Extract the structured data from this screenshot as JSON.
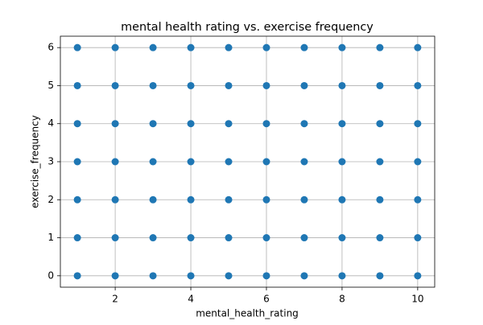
{
  "chart_data": {
    "type": "scatter",
    "title": "mental health rating vs. exercise frequency",
    "x_label": "mental_health_rating",
    "y_label": "exercise_frequency",
    "x": [
      1,
      1,
      1,
      1,
      1,
      1,
      1,
      2,
      2,
      2,
      2,
      2,
      2,
      2,
      3,
      3,
      3,
      3,
      3,
      3,
      3,
      4,
      4,
      4,
      4,
      4,
      4,
      4,
      5,
      5,
      5,
      5,
      5,
      5,
      5,
      6,
      6,
      6,
      6,
      6,
      6,
      6,
      7,
      7,
      7,
      7,
      7,
      7,
      7,
      8,
      8,
      8,
      8,
      8,
      8,
      8,
      9,
      9,
      9,
      9,
      9,
      9,
      9,
      10,
      10,
      10,
      10,
      10,
      10,
      10
    ],
    "values": [
      0,
      1,
      2,
      3,
      4,
      5,
      6,
      0,
      1,
      2,
      3,
      4,
      5,
      6,
      0,
      1,
      2,
      3,
      4,
      5,
      6,
      0,
      1,
      2,
      3,
      4,
      5,
      6,
      0,
      1,
      2,
      3,
      4,
      5,
      6,
      0,
      1,
      2,
      3,
      4,
      5,
      6,
      0,
      1,
      2,
      3,
      4,
      5,
      6,
      0,
      1,
      2,
      3,
      4,
      5,
      6,
      0,
      1,
      2,
      3,
      4,
      5,
      6,
      0,
      1,
      2,
      3,
      4,
      5,
      6
    ],
    "color": "#1f77b4",
    "xlim": [
      0.55,
      10.45
    ],
    "ylim": [
      -0.3,
      6.3
    ],
    "xticks": [
      2,
      4,
      6,
      8,
      10
    ],
    "yticks": [
      0,
      1,
      2,
      3,
      4,
      5,
      6
    ],
    "grid": true
  }
}
